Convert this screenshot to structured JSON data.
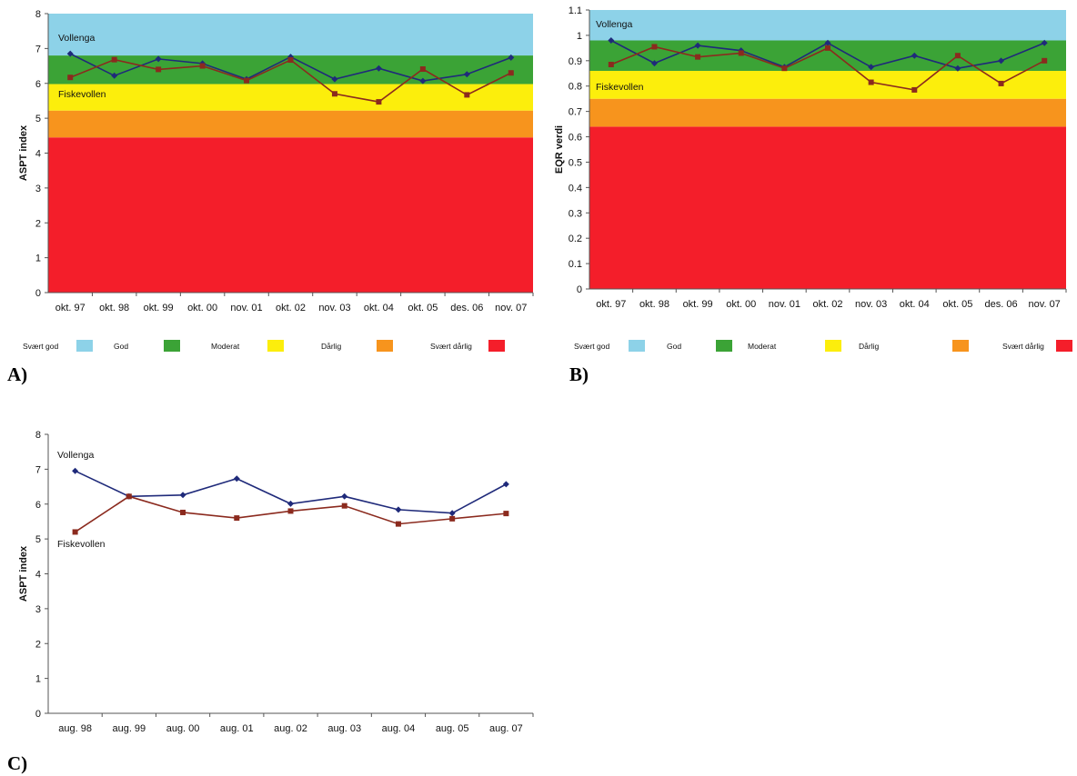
{
  "panels": [
    {
      "letter": "A)"
    },
    {
      "letter": "B)"
    },
    {
      "letter": "C)"
    }
  ],
  "chart_data": [
    {
      "type": "line",
      "panel": "A)",
      "ylabel": "ASPT index",
      "ylim": [
        0,
        8
      ],
      "yticks": [
        "0",
        "1",
        "2",
        "3",
        "4",
        "5",
        "6",
        "7",
        "8"
      ],
      "categories": [
        "okt. 97",
        "okt. 98",
        "okt. 99",
        "okt. 00",
        "nov. 01",
        "okt. 02",
        "nov. 03",
        "okt. 04",
        "okt. 05",
        "des. 06",
        "nov. 07"
      ],
      "bands": [
        {
          "from": 0,
          "to": 4.45,
          "color": "#f41e2a"
        },
        {
          "from": 4.45,
          "to": 5.22,
          "color": "#f7941d"
        },
        {
          "from": 5.22,
          "to": 5.98,
          "color": "#fcee0c"
        },
        {
          "from": 5.98,
          "to": 6.8,
          "color": "#3ba336"
        },
        {
          "from": 6.8,
          "to": 8,
          "color": "#8dd2e8"
        }
      ],
      "series": [
        {
          "name": "Vollenga",
          "color": "#1f2a7a",
          "marker": "diamond",
          "values": [
            6.85,
            6.22,
            6.7,
            6.57,
            6.12,
            6.76,
            6.12,
            6.43,
            6.07,
            6.26,
            6.74
          ]
        },
        {
          "name": "Fiskevollen",
          "color": "#8b2a1e",
          "marker": "square",
          "values": [
            6.17,
            6.68,
            6.4,
            6.5,
            6.08,
            6.67,
            5.7,
            5.47,
            6.41,
            5.67,
            6.3
          ]
        }
      ],
      "legend": [
        "Svært god",
        "God",
        "Moderat",
        "Dårlig",
        "Svært dårlig"
      ],
      "legend_colors": [
        "#8dd2e8",
        "#3ba336",
        "#fcee0c",
        "#f7941d",
        "#f41e2a"
      ]
    },
    {
      "type": "line",
      "panel": "B)",
      "ylabel": "EQR verdi",
      "ylim": [
        0,
        1.1
      ],
      "yticks": [
        "0",
        "0.1",
        "0.2",
        "0.3",
        "0.4",
        "0.5",
        "0.6",
        "0.7",
        "0.8",
        "0.9",
        "1",
        "1.1"
      ],
      "categories": [
        "okt. 97",
        "okt. 98",
        "okt. 99",
        "okt. 00",
        "nov. 01",
        "okt. 02",
        "nov. 03",
        "okt. 04",
        "okt. 05",
        "des. 06",
        "nov. 07"
      ],
      "bands": [
        {
          "from": 0,
          "to": 0.64,
          "color": "#f41e2a"
        },
        {
          "from": 0.64,
          "to": 0.75,
          "color": "#f7941d"
        },
        {
          "from": 0.75,
          "to": 0.86,
          "color": "#fcee0c"
        },
        {
          "from": 0.86,
          "to": 0.98,
          "color": "#3ba336"
        },
        {
          "from": 0.98,
          "to": 1.1,
          "color": "#8dd2e8"
        }
      ],
      "series": [
        {
          "name": "Vollenga",
          "color": "#1f2a7a",
          "marker": "diamond",
          "values": [
            0.98,
            0.89,
            0.96,
            0.94,
            0.875,
            0.97,
            0.875,
            0.92,
            0.87,
            0.9,
            0.97
          ]
        },
        {
          "name": "Fiskevollen",
          "color": "#8b2a1e",
          "marker": "square",
          "values": [
            0.885,
            0.955,
            0.915,
            0.93,
            0.87,
            0.95,
            0.815,
            0.785,
            0.92,
            0.81,
            0.9
          ]
        }
      ],
      "legend": [
        "Svært god",
        "God",
        "Moderat",
        "Dårlig",
        "Svært dårlig"
      ],
      "legend_colors": [
        "#8dd2e8",
        "#3ba336",
        "#fcee0c",
        "#f7941d",
        "#f41e2a"
      ]
    },
    {
      "type": "line",
      "panel": "C)",
      "ylabel": "ASPT index",
      "ylim": [
        0,
        8
      ],
      "yticks": [
        "0",
        "1",
        "2",
        "3",
        "4",
        "5",
        "6",
        "7",
        "8"
      ],
      "categories": [
        "aug. 98",
        "aug. 99",
        "aug. 00",
        "aug. 01",
        "aug. 02",
        "aug. 03",
        "aug. 04",
        "aug. 05",
        "aug. 07"
      ],
      "bands": [],
      "series": [
        {
          "name": "Vollenga",
          "color": "#1f2a7a",
          "marker": "diamond",
          "values": [
            6.95,
            6.22,
            6.26,
            6.73,
            6.01,
            6.22,
            5.84,
            5.74,
            6.57
          ]
        },
        {
          "name": "Fiskevollen",
          "color": "#8b2a1e",
          "marker": "square",
          "values": [
            5.2,
            6.22,
            5.76,
            5.6,
            5.8,
            5.95,
            5.43,
            5.58,
            5.73
          ]
        }
      ],
      "legend": [],
      "legend_colors": []
    }
  ]
}
